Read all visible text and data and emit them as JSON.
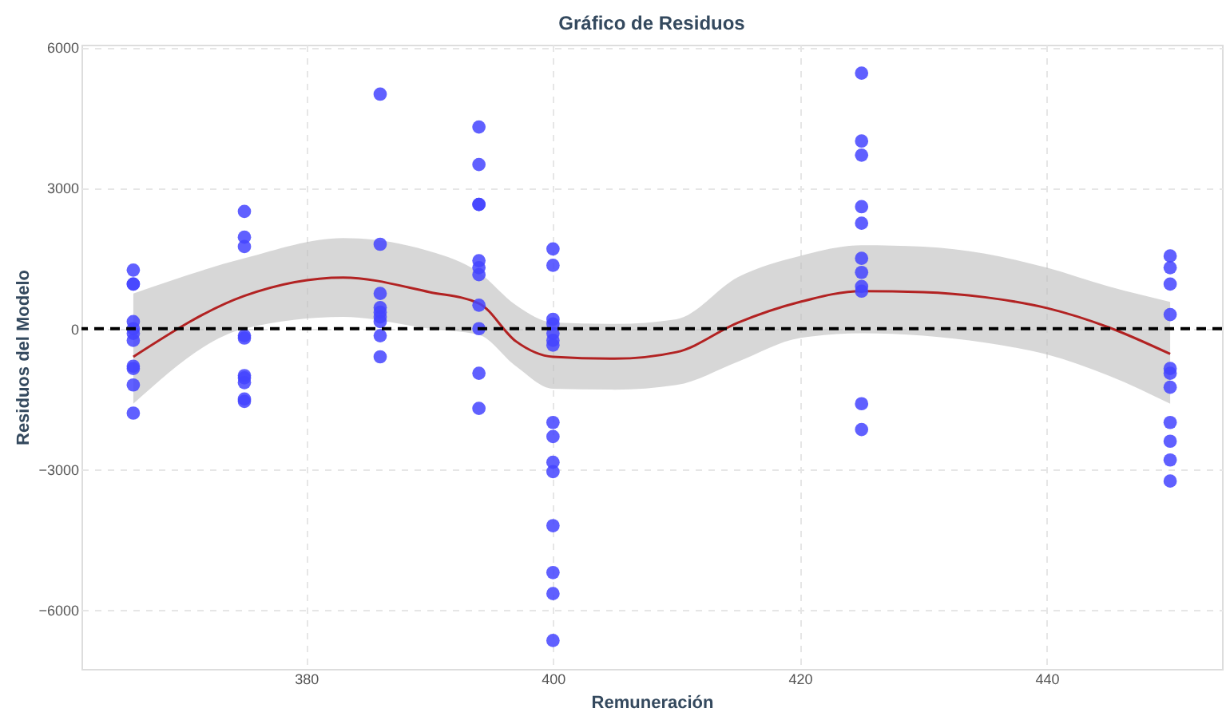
{
  "chart_data": {
    "type": "scatter",
    "title": "Gráfico de Residuos",
    "xlabel": "Remuneración",
    "ylabel": "Residuos del Modelo",
    "xlim": [
      361.8,
      454.2
    ],
    "ylim": [
      -7255,
      6055
    ],
    "xticks": [
      380,
      400,
      420,
      440
    ],
    "yticks": [
      -6000,
      -3000,
      0,
      3000,
      6000
    ],
    "grid": true,
    "legend": false,
    "series": [
      {
        "type": "scatter",
        "color": "#4444ff",
        "marker": "circle",
        "x": [
          366,
          366,
          366,
          366,
          366,
          366,
          366,
          366,
          366,
          366,
          366,
          375,
          375,
          375,
          375,
          375,
          375,
          375,
          375,
          375,
          375,
          386,
          386,
          386,
          386,
          386,
          386,
          386,
          386,
          386,
          394,
          394,
          394,
          394,
          394,
          394,
          394,
          394,
          394,
          394,
          394,
          400,
          400,
          400,
          400,
          400,
          400,
          400,
          400,
          400,
          400,
          400,
          400,
          400,
          400,
          400,
          425,
          425,
          425,
          425,
          425,
          425,
          425,
          425,
          425,
          425,
          425,
          450,
          450,
          450,
          450,
          450,
          450,
          450,
          450,
          450,
          450,
          450
        ],
        "values": [
          1250,
          950,
          950,
          150,
          0,
          -100,
          -250,
          -800,
          -850,
          -1200,
          -1800,
          2500,
          1950,
          1750,
          -150,
          -200,
          -1000,
          -1050,
          -1150,
          -1500,
          -1550,
          5000,
          1800,
          750,
          450,
          350,
          250,
          150,
          -150,
          -600,
          4300,
          3500,
          2650,
          2650,
          1450,
          1300,
          1150,
          500,
          0,
          -950,
          -1700,
          1700,
          1350,
          200,
          100,
          -100,
          -250,
          -350,
          -2000,
          -2300,
          -2850,
          -3050,
          -4200,
          -5200,
          -5650,
          -6650,
          5450,
          4000,
          3700,
          2600,
          2250,
          1500,
          1200,
          900,
          800,
          -1600,
          -2150,
          1550,
          1300,
          950,
          300,
          -850,
          -950,
          -1250,
          -2000,
          -2400,
          -2800,
          -3250
        ]
      },
      {
        "type": "line",
        "marker": "none",
        "color": "#b22222",
        "x": [
          366,
          375,
          383,
          390,
          394,
          397,
          400,
          405,
          410,
          415,
          420,
          425,
          430,
          435,
          440,
          445,
          450
        ],
        "values": [
          -600,
          700,
          1090,
          780,
          540,
          -270,
          -600,
          -640,
          -500,
          130,
          570,
          800,
          780,
          670,
          440,
          30,
          -540
        ],
        "lower": [
          -1600,
          0,
          250,
          0,
          -130,
          -800,
          -1280,
          -1300,
          -1200,
          -700,
          -200,
          -100,
          -150,
          -300,
          -550,
          -1000,
          -1600
        ],
        "upper": [
          750,
          1500,
          1930,
          1650,
          1200,
          500,
          130,
          100,
          200,
          1100,
          1550,
          1780,
          1750,
          1600,
          1300,
          900,
          570
        ]
      }
    ],
    "ref_lines": [
      {
        "axis": "y",
        "value": 0,
        "color": "#000000",
        "line_style": "dashed"
      }
    ]
  }
}
